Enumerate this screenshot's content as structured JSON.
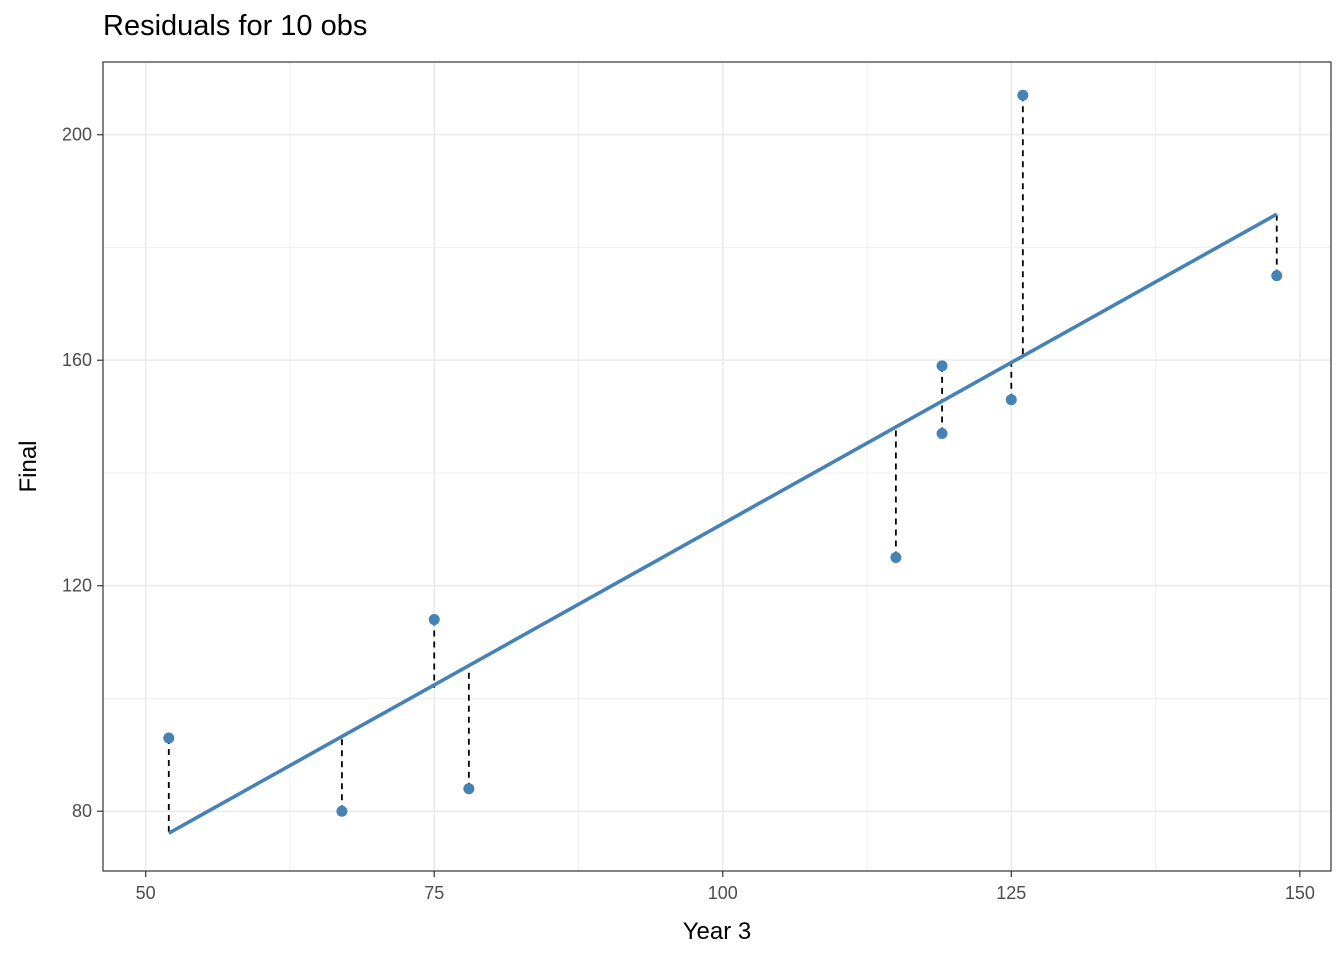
{
  "chart_data": {
    "type": "scatter",
    "title": "Residuals for 10 obs",
    "xlabel": "Year 3",
    "ylabel": "Final",
    "xlim": [
      46.3,
      152.7
    ],
    "ylim": [
      69.4,
      212.9
    ],
    "x_ticks": [
      50,
      75,
      100,
      125,
      150
    ],
    "y_ticks": [
      80,
      120,
      160,
      200
    ],
    "x_tick_labels": [
      "50",
      "75",
      "100",
      "125",
      "150"
    ],
    "y_tick_labels": [
      "80",
      "120",
      "160",
      "200"
    ],
    "grid": true,
    "points": [
      {
        "x": 52,
        "y": 93,
        "fitted": 76.1
      },
      {
        "x": 67,
        "y": 80,
        "fitted": 92.9
      },
      {
        "x": 75,
        "y": 114,
        "fitted": 101.9
      },
      {
        "x": 78,
        "y": 84,
        "fitted": 105.3
      },
      {
        "x": 115,
        "y": 125,
        "fitted": 148.0
      },
      {
        "x": 119,
        "y": 159,
        "fitted": 152.6
      },
      {
        "x": 119,
        "y": 147,
        "fitted": 152.6
      },
      {
        "x": 125,
        "y": 153,
        "fitted": 159.4
      },
      {
        "x": 126,
        "y": 207,
        "fitted": 160.6
      },
      {
        "x": 148,
        "y": 175,
        "fitted": 185.9
      }
    ],
    "fit_line": {
      "x": [
        52,
        148
      ],
      "y": [
        76.1,
        185.9
      ]
    },
    "colors": {
      "points": "#4682B4",
      "fit_line": "#4682B4",
      "residuals": "#000000",
      "grid": "#EBEBEB",
      "panel_border": "#333333"
    }
  }
}
